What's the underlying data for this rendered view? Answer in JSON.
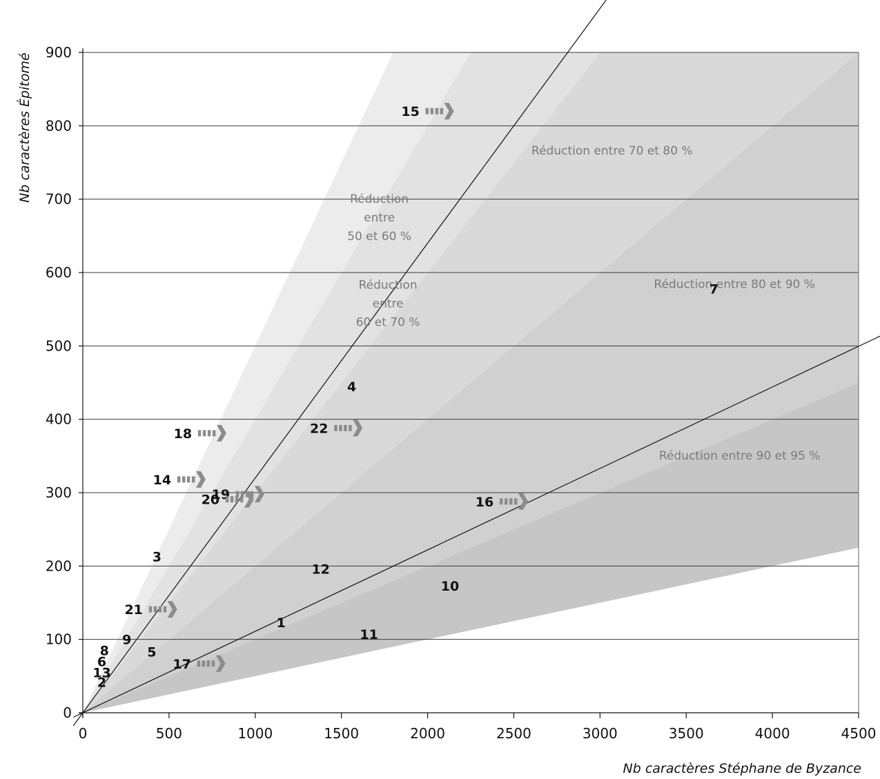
{
  "chart_data": {
    "type": "scatter",
    "title": "",
    "xlabel": "Nb caractères Stéphane de Byzance",
    "ylabel": "Nb caractères Épitomé",
    "xlim": [
      0,
      4500
    ],
    "ylim": [
      0,
      900
    ],
    "xticks": [
      "0",
      "500",
      "1000",
      "1500",
      "2000",
      "2500",
      "3000",
      "3500",
      "4000",
      "4500"
    ],
    "yticks": [
      "0",
      "100",
      "200",
      "300",
      "400",
      "500",
      "600",
      "700",
      "800",
      "900"
    ],
    "grid": "horizontal",
    "zones": [
      {
        "label": "Réduction entre 50 et 60 %",
        "label_lines": [
          "Réduction",
          "entre",
          "50 et 60 %"
        ],
        "from_ratio": 0.5,
        "to_ratio": 0.4,
        "color": "#ececec"
      },
      {
        "label": "Réduction entre 60 et 70 %",
        "label_lines": [
          "Réduction",
          "entre",
          "60 et 70 %"
        ],
        "from_ratio": 0.4,
        "to_ratio": 0.3,
        "color": "#e2e2e2"
      },
      {
        "label": "Réduction entre 70 et 80 %",
        "label_lines": [
          "Réduction entre 70 et 80 %"
        ],
        "from_ratio": 0.3,
        "to_ratio": 0.2,
        "color": "#d9d9d9"
      },
      {
        "label": "Réduction entre 80 et 90 %",
        "label_lines": [
          "Réduction entre 80 et 90 %"
        ],
        "from_ratio": 0.2,
        "to_ratio": 0.1,
        "color": "#d0d0d0"
      },
      {
        "label": "Réduction entre 90 et 95 %",
        "label_lines": [
          "Réduction entre 90 et 95 %"
        ],
        "from_ratio": 0.1,
        "to_ratio": 0.05,
        "color": "#c6c6c6"
      }
    ],
    "reference_lines": [
      {
        "ratio": 0.32
      },
      {
        "ratio": 0.111
      }
    ],
    "points": [
      {
        "label": "1",
        "x": 1150,
        "y": 123,
        "arrow": false
      },
      {
        "label": "2",
        "x": 110,
        "y": 42,
        "arrow": false
      },
      {
        "label": "3",
        "x": 430,
        "y": 213,
        "arrow": false
      },
      {
        "label": "4",
        "x": 1560,
        "y": 445,
        "arrow": false
      },
      {
        "label": "5",
        "x": 400,
        "y": 83,
        "arrow": false
      },
      {
        "label": "6",
        "x": 110,
        "y": 70,
        "arrow": false
      },
      {
        "label": "7",
        "x": 3660,
        "y": 578,
        "arrow": false
      },
      {
        "label": "8",
        "x": 125,
        "y": 85,
        "arrow": false
      },
      {
        "label": "9",
        "x": 255,
        "y": 100,
        "arrow": false
      },
      {
        "label": "10",
        "x": 2130,
        "y": 173,
        "arrow": false
      },
      {
        "label": "11",
        "x": 1660,
        "y": 107,
        "arrow": false
      },
      {
        "label": "12",
        "x": 1380,
        "y": 196,
        "arrow": false
      },
      {
        "label": "13",
        "x": 110,
        "y": 55,
        "arrow": false
      },
      {
        "label": "14",
        "x": 460,
        "y": 318,
        "arrow": true
      },
      {
        "label": "15",
        "x": 1900,
        "y": 820,
        "arrow": true
      },
      {
        "label": "16",
        "x": 2330,
        "y": 288,
        "arrow": true
      },
      {
        "label": "17",
        "x": 575,
        "y": 67,
        "arrow": true
      },
      {
        "label": "18",
        "x": 580,
        "y": 381,
        "arrow": true
      },
      {
        "label": "19",
        "x": 800,
        "y": 298,
        "arrow": true
      },
      {
        "label": "20",
        "x": 740,
        "y": 291,
        "arrow": true
      },
      {
        "label": "21",
        "x": 295,
        "y": 141,
        "arrow": true
      },
      {
        "label": "22",
        "x": 1370,
        "y": 388,
        "arrow": true
      }
    ]
  }
}
